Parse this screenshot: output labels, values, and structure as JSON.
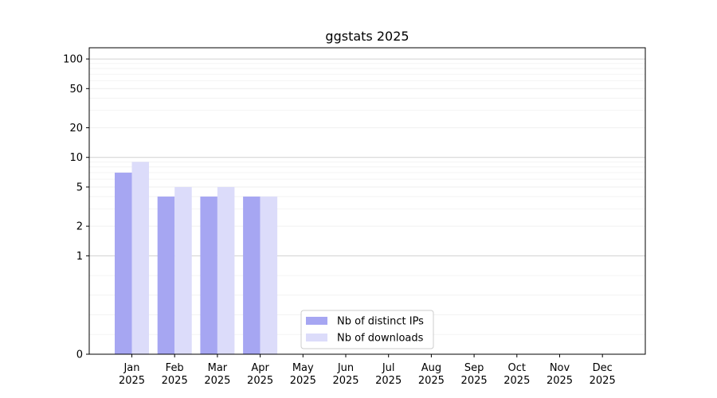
{
  "chart_data": {
    "type": "bar",
    "title": "ggstats 2025",
    "xlabel": "",
    "ylabel": "",
    "y_scale": "symlog",
    "ylim": [
      0,
      130
    ],
    "y_ticks": [
      0,
      1,
      2,
      5,
      10,
      20,
      50,
      100
    ],
    "grid": true,
    "legend_position": "bottom-center",
    "categories": [
      [
        "Jan",
        "2025"
      ],
      [
        "Feb",
        "2025"
      ],
      [
        "Mar",
        "2025"
      ],
      [
        "Apr",
        "2025"
      ],
      [
        "May",
        "2025"
      ],
      [
        "Jun",
        "2025"
      ],
      [
        "Jul",
        "2025"
      ],
      [
        "Aug",
        "2025"
      ],
      [
        "Sep",
        "2025"
      ],
      [
        "Oct",
        "2025"
      ],
      [
        "Nov",
        "2025"
      ],
      [
        "Dec",
        "2025"
      ]
    ],
    "series": [
      {
        "name": "Nb of distinct IPs",
        "color": "#a6a6f2",
        "values": [
          7,
          4,
          4,
          4,
          null,
          null,
          null,
          null,
          null,
          null,
          null,
          null
        ]
      },
      {
        "name": "Nb of downloads",
        "color": "#dcdcfa",
        "values": [
          9,
          5,
          5,
          4,
          null,
          null,
          null,
          null,
          null,
          null,
          null,
          null
        ]
      }
    ]
  }
}
